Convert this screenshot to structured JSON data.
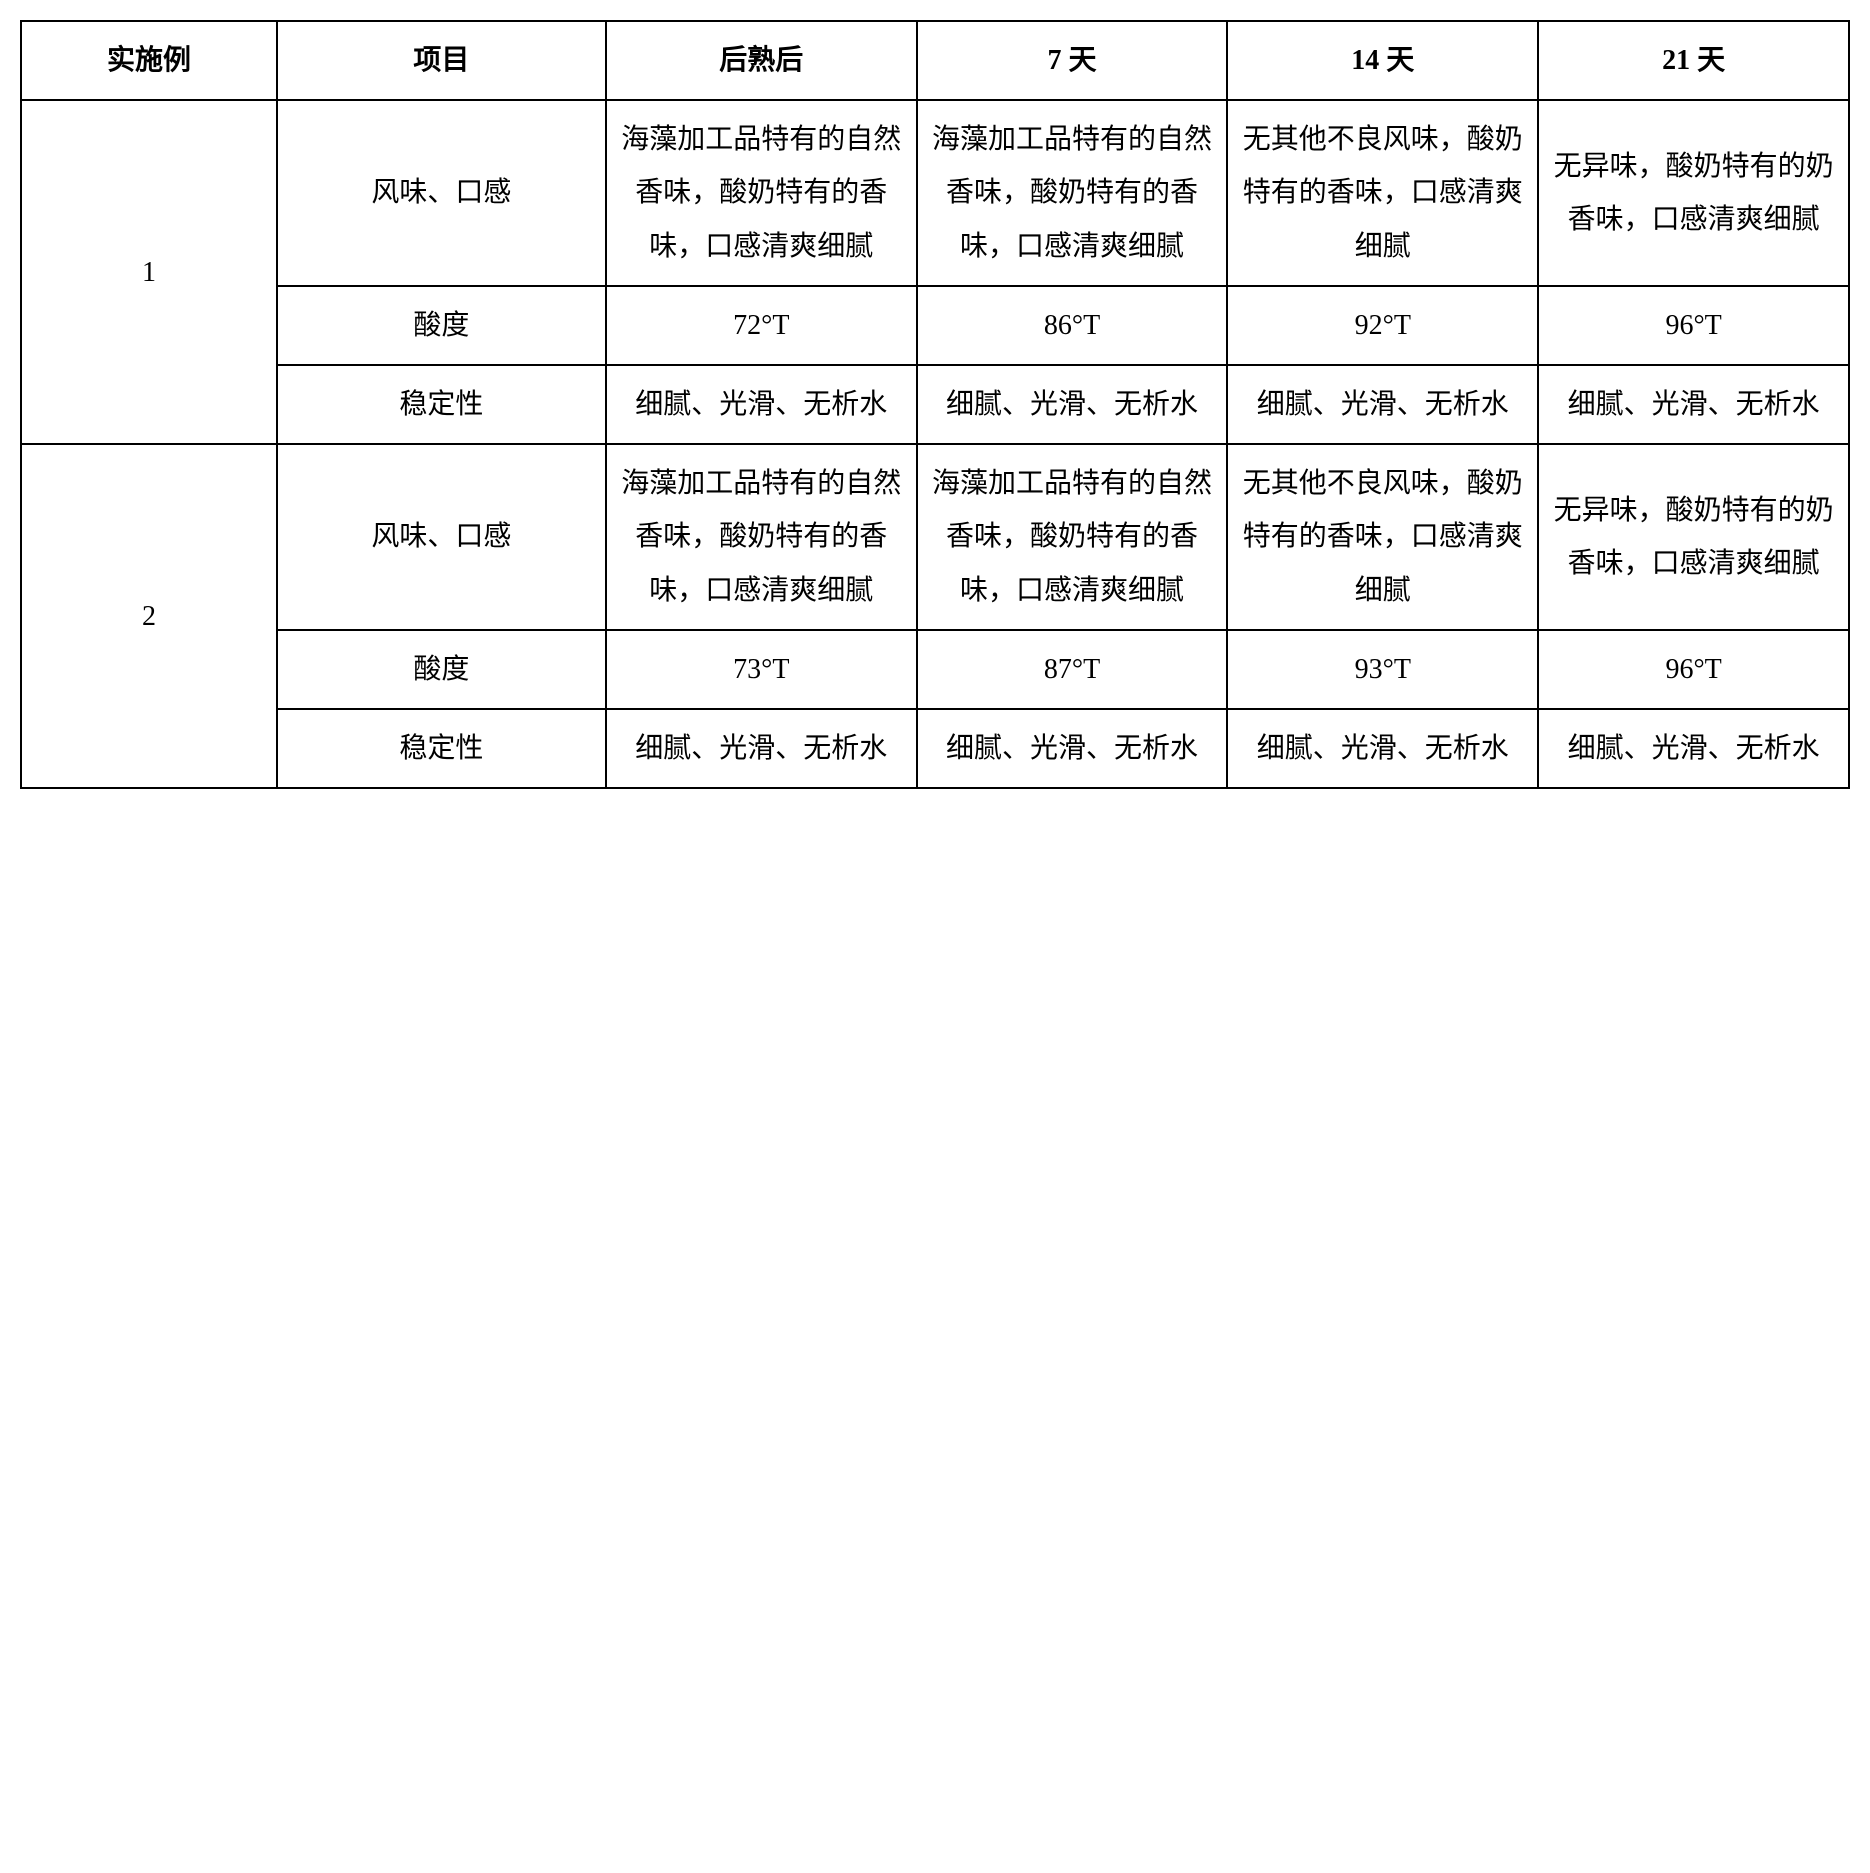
{
  "headers": [
    "实施例",
    "项目",
    "后熟后",
    "7 天",
    "14 天",
    "21 天"
  ],
  "groups": [
    {
      "example": "1",
      "rows": [
        {
          "item": "风味、口感",
          "cells": [
            "海藻加工品特有的自然香味，酸奶特有的香味，口感清爽细腻",
            "海藻加工品特有的自然香味，酸奶特有的香味，口感清爽细腻",
            "无其他不良风味，酸奶特有的香味，口感清爽细腻",
            "无异味，酸奶特有的奶香味，口感清爽细腻"
          ]
        },
        {
          "item": "酸度",
          "cells": [
            "72°T",
            "86°T",
            "92°T",
            "96°T"
          ]
        },
        {
          "item": "稳定性",
          "cells": [
            "细腻、光滑、无析水",
            "细腻、光滑、无析水",
            "细腻、光滑、无析水",
            "细腻、光滑、无析水"
          ]
        }
      ]
    },
    {
      "example": "2",
      "rows": [
        {
          "item": "风味、口感",
          "cells": [
            "海藻加工品特有的自然香味，酸奶特有的香味，口感清爽细腻",
            "海藻加工品特有的自然香味，酸奶特有的香味，口感清爽细腻",
            "无其他不良风味，酸奶特有的香味，口感清爽细腻",
            "无异味，酸奶特有的奶香味，口感清爽细腻"
          ]
        },
        {
          "item": "酸度",
          "cells": [
            "73°T",
            "87°T",
            "93°T",
            "96°T"
          ]
        },
        {
          "item": "稳定性",
          "cells": [
            "细腻、光滑、无析水",
            "细腻、光滑、无析水",
            "细腻、光滑、无析水",
            "细腻、光滑、无析水"
          ]
        }
      ]
    }
  ]
}
